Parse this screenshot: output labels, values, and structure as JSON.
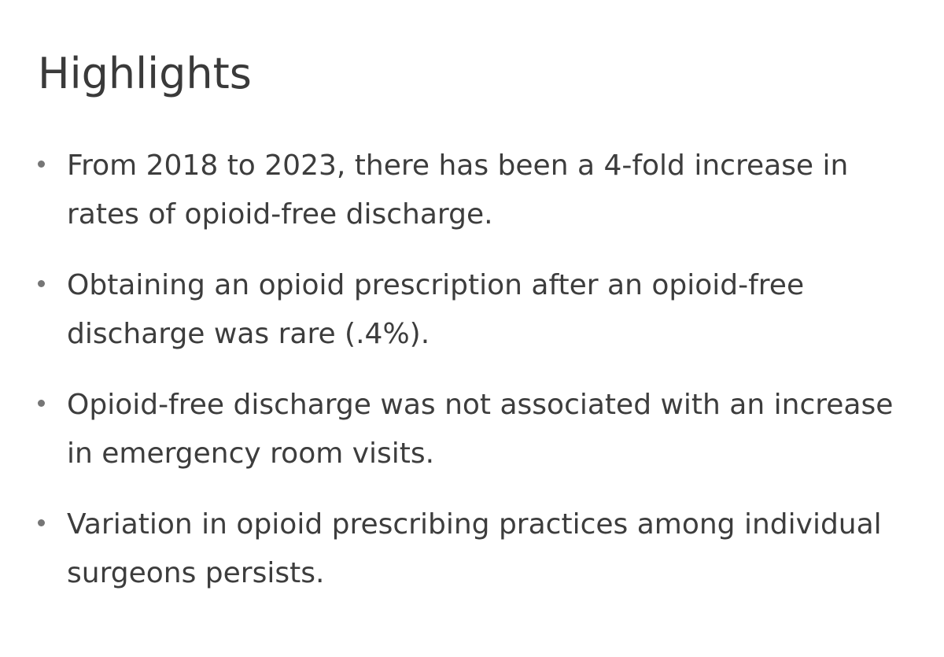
{
  "page": {
    "background_color": "#ffffff",
    "text_color": "#3d3d3d",
    "bullet_color": "#767676"
  },
  "highlights": {
    "title": "Highlights",
    "items": [
      {
        "line1": "From 2018 to 2023, there has been a 4-fold increase in",
        "line2": "rates of opioid-free discharge.",
        "full_text": "From 2018 to 2023, there has been a 4-fold increase in rates of opioid-free discharge."
      },
      {
        "line1": "Obtaining an opioid prescription after an opioid-free",
        "line2": "discharge was rare (.4%).",
        "full_text": "Obtaining an opioid prescription after an opioid-free discharge was rare (.4%)."
      },
      {
        "line1": "Opioid-free discharge was not associated with an increase",
        "line2": "in emergency room visits.",
        "full_text": "Opioid-free discharge was not associated with an increase in emergency room visits."
      },
      {
        "line1": "Variation in opioid prescribing practices among individual",
        "line2": "surgeons persists.",
        "full_text": "Variation in opioid prescribing practices among individual surgeons persists."
      }
    ]
  }
}
